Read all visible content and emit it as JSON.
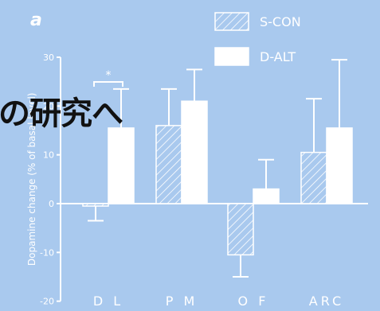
{
  "panel_label": "a",
  "overlay_text": "の研究へ",
  "colors": {
    "background": "#a9c9ee",
    "axis": "#ffffff",
    "bar_fill": "#ffffff",
    "hatch_fill": "#a9c9ee",
    "hatch_stroke": "#ffffff",
    "overlay_text": "#111111"
  },
  "chart_data": {
    "type": "bar",
    "categories": [
      "D L",
      "P M",
      "O F",
      "ARC"
    ],
    "series": [
      {
        "name": "S-CON",
        "pattern": "hatched",
        "values": [
          -0.5,
          16,
          -10.5,
          10.5
        ],
        "errors": [
          3,
          7.5,
          4.5,
          11
        ]
      },
      {
        "name": "D-ALT",
        "pattern": "solid",
        "values": [
          15.5,
          21,
          3,
          15.5
        ],
        "errors": [
          8,
          6.5,
          6,
          14
        ]
      }
    ],
    "ylabel": "Dopamine change  (% of basal level)",
    "ylim": [
      -20,
      30
    ],
    "yticks": [
      "-20",
      "-10",
      "0",
      "10",
      "20",
      "30"
    ],
    "legend": [
      "S-CON",
      "D-ALT"
    ],
    "legend_position": "top-right",
    "annotations": [
      {
        "category": "D L",
        "text": "*",
        "bracket": true
      }
    ]
  }
}
